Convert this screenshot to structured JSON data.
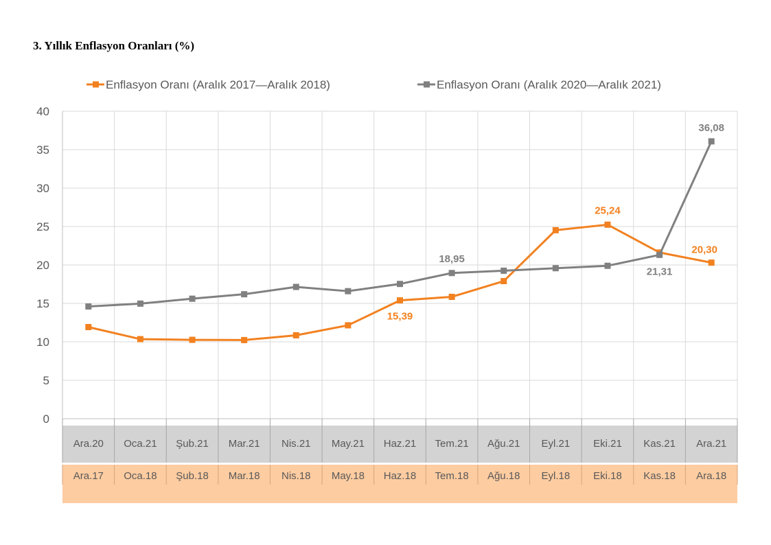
{
  "title": "3. Yıllık Enflasyon Oranları (%)",
  "colors": {
    "orange": "#F28120",
    "gray": "#808080",
    "grid": "#D9D9D9",
    "band_gray": "#D3D3D3",
    "band_orange": "#FDCCA1"
  },
  "chart_data": {
    "type": "line",
    "ylim": [
      0,
      40
    ],
    "yticks": [
      0,
      5,
      10,
      15,
      20,
      25,
      30,
      35,
      40
    ],
    "grid": true,
    "legend_position": "top",
    "categories_row1": [
      "Ara.20",
      "Oca.21",
      "Şub.21",
      "Mar.21",
      "Nis.21",
      "May.21",
      "Haz.21",
      "Tem.21",
      "Ağu.21",
      "Eyl.21",
      "Eki.21",
      "Kas.21",
      "Ara.21"
    ],
    "categories_row2": [
      "Ara.17",
      "Oca.18",
      "Şub.18",
      "Mar.18",
      "Nis.18",
      "May.18",
      "Haz.18",
      "Tem.18",
      "Ağu.18",
      "Eyl.18",
      "Eki.18",
      "Kas.18",
      "Ara.18"
    ],
    "series": [
      {
        "name": "Enflasyon Oranı (Aralık 2017—Aralık 2018)",
        "color": "#F28120",
        "values": [
          11.92,
          10.35,
          10.26,
          10.23,
          10.85,
          12.15,
          15.39,
          15.85,
          17.9,
          24.52,
          25.24,
          21.62,
          20.3
        ],
        "labels": {
          "6": "15,39",
          "10": "25,24",
          "12": "20,30"
        }
      },
      {
        "name": "Enflasyon Oranı (Aralık 2020—Aralık 2021)",
        "color": "#808080",
        "values": [
          14.6,
          14.97,
          15.61,
          16.19,
          17.14,
          16.59,
          17.53,
          18.95,
          19.25,
          19.58,
          19.89,
          21.31,
          36.08
        ],
        "labels": {
          "7": "18,95",
          "11": "21,31",
          "12": "36,08"
        }
      }
    ]
  }
}
